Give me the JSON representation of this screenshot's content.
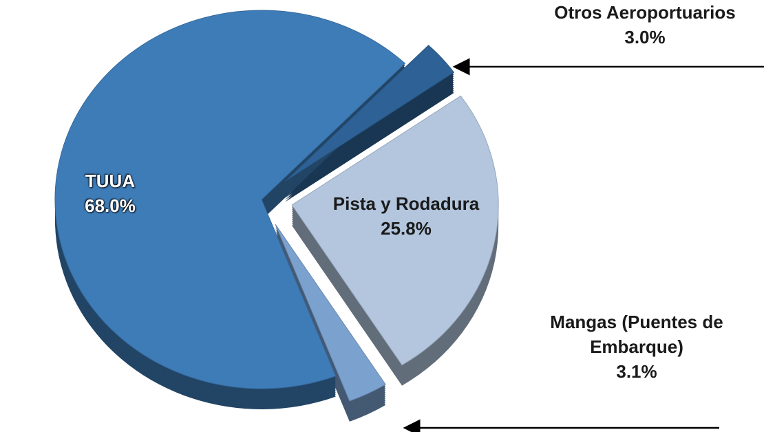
{
  "chart_data": {
    "type": "pie",
    "categories": [
      "Otros Aeroportuarios",
      "Pista y Rodadura",
      "Mangas (Puentes de Embarque)",
      "TUUA"
    ],
    "values": [
      3.0,
      25.8,
      3.1,
      68.0
    ],
    "value_labels": [
      "3.0%",
      "25.8%",
      "3.1%",
      "68.0%"
    ],
    "colors": [
      "#2e6296",
      "#b3c6de",
      "#7ba1cf",
      "#3e7cb8"
    ]
  }
}
